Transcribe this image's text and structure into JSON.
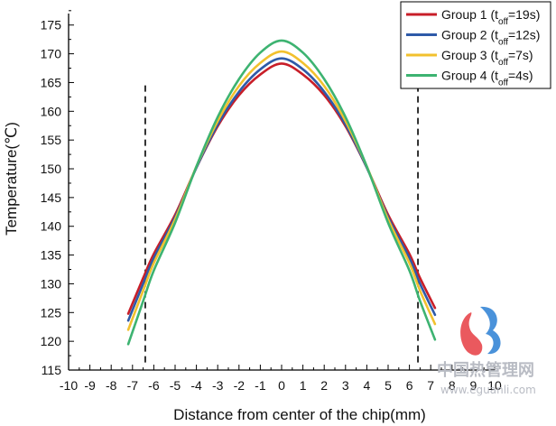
{
  "chart_data": {
    "type": "line",
    "xlabel": "Distance from center of the chip(mm)",
    "ylabel": "Temperature(℃)",
    "xlim": [
      -10,
      10
    ],
    "ylim": [
      115,
      177
    ],
    "x_ticks": [
      -10,
      -9,
      -8,
      -7,
      -6,
      -5,
      -4,
      -3,
      -2,
      -1,
      0,
      1,
      2,
      3,
      4,
      5,
      6,
      7,
      8,
      9,
      10
    ],
    "y_ticks": [
      115,
      120,
      125,
      130,
      135,
      140,
      145,
      150,
      155,
      160,
      165,
      170,
      175
    ],
    "x_tick_labels": [
      "-10",
      "-9",
      "-8",
      "-7",
      "-6",
      "-5",
      "-4",
      "-3",
      "-2",
      "-1",
      "0",
      "1",
      "2",
      "3",
      "4",
      "5",
      "6",
      "7",
      "8",
      "9",
      "10"
    ],
    "y_tick_labels": [
      "115",
      "120",
      "125",
      "130",
      "135",
      "140",
      "145",
      "150",
      "155",
      "160",
      "165",
      "170",
      "175"
    ],
    "legend_position": "top-right",
    "grid": false,
    "x": [
      -7.2,
      -6.5,
      -6,
      -5,
      -4,
      -3,
      -2,
      -1,
      0,
      1,
      2,
      3,
      4,
      5,
      6,
      6.5,
      7.2
    ],
    "series": [
      {
        "name": "Group 1 (t",
        "sub": "off",
        "suffix": "=19s)",
        "color": "#c81e28",
        "values": [
          124.8,
          131.0,
          135.2,
          142.0,
          150.2,
          157.4,
          162.8,
          166.4,
          168.3,
          166.4,
          162.8,
          157.4,
          150.2,
          142.0,
          135.2,
          131.0,
          125.8
        ]
      },
      {
        "name": "Group 2 (t",
        "sub": "off",
        "suffix": "=12s)",
        "color": "#2e5aa8",
        "values": [
          123.6,
          130.0,
          134.5,
          141.6,
          150.2,
          157.7,
          163.4,
          167.3,
          169.2,
          167.3,
          163.4,
          157.7,
          150.2,
          141.6,
          134.5,
          130.0,
          124.6
        ]
      },
      {
        "name": "Group 3 (t",
        "sub": "off",
        "suffix": "=7s)",
        "color": "#f2c12e",
        "values": [
          122.0,
          128.8,
          133.6,
          141.2,
          150.4,
          158.3,
          164.4,
          168.4,
          170.4,
          168.4,
          164.4,
          158.3,
          150.4,
          141.2,
          133.6,
          128.8,
          123.0
        ]
      },
      {
        "name": "Group 4 (t",
        "sub": "off",
        "suffix": "=4s)",
        "color": "#3db371",
        "values": [
          119.5,
          127.0,
          132.3,
          140.6,
          150.4,
          159.0,
          165.6,
          170.2,
          172.3,
          170.2,
          165.6,
          159.0,
          150.4,
          140.6,
          132.3,
          127.0,
          120.3
        ]
      }
    ],
    "reference_lines_x": [
      -6.4,
      6.4
    ]
  },
  "watermark": {
    "text": "中国热管理网",
    "url": "www.eguanli.com",
    "colors": [
      "#e8474c",
      "#2a7fd4"
    ]
  }
}
